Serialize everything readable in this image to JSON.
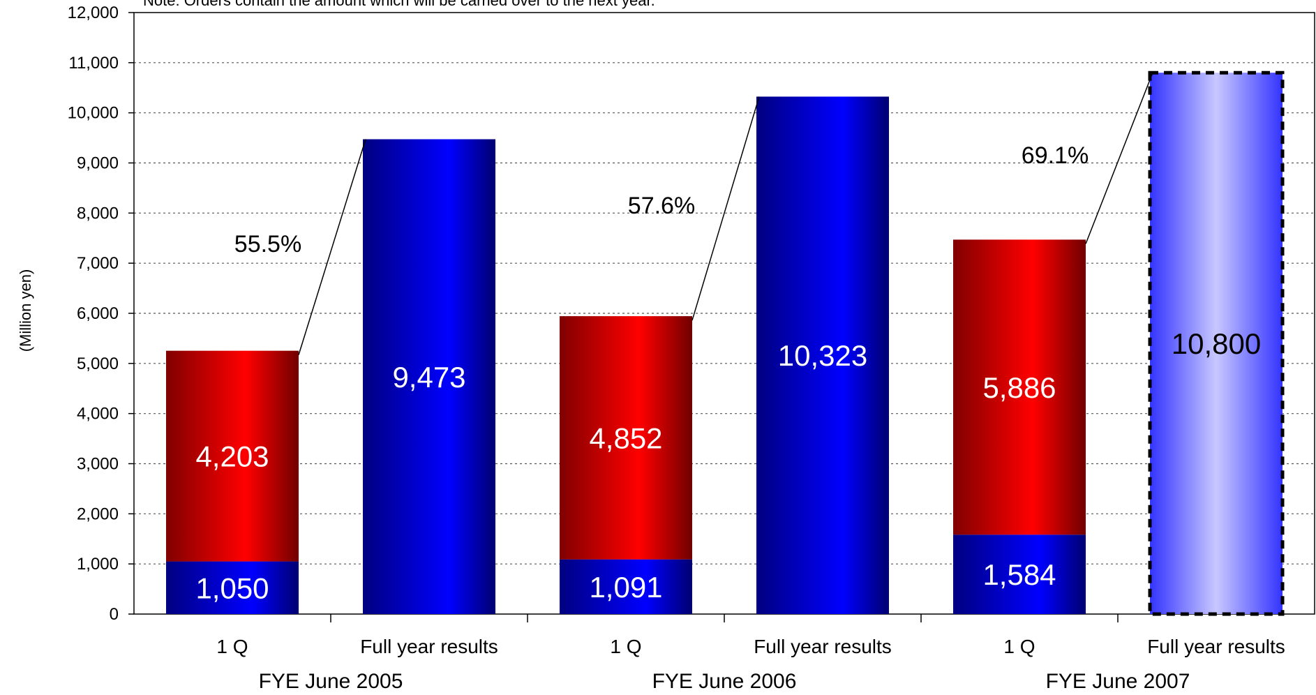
{
  "chart_data": {
    "type": "bar",
    "note": "Note: Orders contain the amount which will be carried over to the next year.",
    "ylabel": "(Million yen)",
    "ylim": [
      0,
      12000
    ],
    "yticks": [
      "0",
      "1,000",
      "2,000",
      "3,000",
      "4,000",
      "5,000",
      "6,000",
      "7,000",
      "8,000",
      "9,000",
      "10,000",
      "11,000",
      "12,000"
    ],
    "grid": true,
    "groups": [
      {
        "label": "FYE June 2005",
        "bars": [
          {
            "category": "1 Q",
            "segments": [
              {
                "value": 1050,
                "label": "1,050",
                "color": "blue"
              },
              {
                "value": 4203,
                "label": "4,203",
                "color": "red"
              }
            ]
          },
          {
            "category": "Full year results",
            "segments": [
              {
                "value": 9473,
                "label": "9,473",
                "color": "blue"
              }
            ]
          }
        ],
        "ratio_label": "55.5%"
      },
      {
        "label": "FYE June 2006",
        "bars": [
          {
            "category": "1 Q",
            "segments": [
              {
                "value": 1091,
                "label": "1,091",
                "color": "blue"
              },
              {
                "value": 4852,
                "label": "4,852",
                "color": "red"
              }
            ]
          },
          {
            "category": "Full year results",
            "segments": [
              {
                "value": 10323,
                "label": "10,323",
                "color": "blue"
              }
            ]
          }
        ],
        "ratio_label": "57.6%"
      },
      {
        "label": "FYE June 2007",
        "bars": [
          {
            "category": "1 Q",
            "segments": [
              {
                "value": 1584,
                "label": "1,584",
                "color": "blue"
              },
              {
                "value": 5886,
                "label": "5,886",
                "color": "red"
              }
            ]
          },
          {
            "category": "Full year results",
            "segments": [
              {
                "value": 10800,
                "label": "10,800",
                "color": "light-blue",
                "dashed": true
              }
            ]
          }
        ],
        "ratio_label": "69.1%"
      }
    ],
    "colors": {
      "blue_dark": "#000080",
      "blue_mid": "#0000ff",
      "red_dark": "#800000",
      "red_mid": "#ff0000",
      "light_blue_mid": "#c8c8ff",
      "light_blue_edge": "#3333ff"
    }
  }
}
